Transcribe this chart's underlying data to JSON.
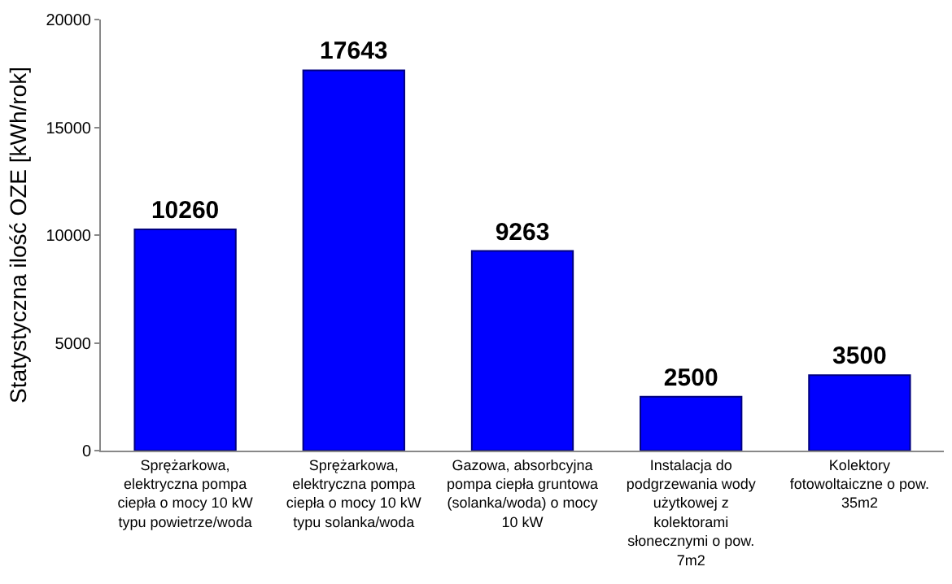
{
  "chart_data": {
    "type": "bar",
    "ylabel": "Statystyczna ilość OZE [kWh/rok]",
    "categories": [
      "Sprężarkowa, elektryczna pompa ciepła o mocy 10 kW typu powietrze/woda",
      "Sprężarkowa, elektryczna pompa ciepła o mocy 10 kW typu solanka/woda",
      "Gazowa, absorbcyjna pompa ciepła gruntowa (solanka/woda) o mocy 10 kW",
      "Instalacja do podgrzewania wody użytkowej z kolektorami słonecznymi o pow. 7m2",
      "Kolektory fotowoltaiczne o pow. 35m2"
    ],
    "values": [
      10260,
      17643,
      9263,
      2500,
      3500
    ],
    "color": "#0000ff",
    "ylim": [
      0,
      20000
    ],
    "yticks": [
      0,
      5000,
      10000,
      15000,
      20000
    ],
    "data_labels": true,
    "grid": false,
    "legend": false
  }
}
